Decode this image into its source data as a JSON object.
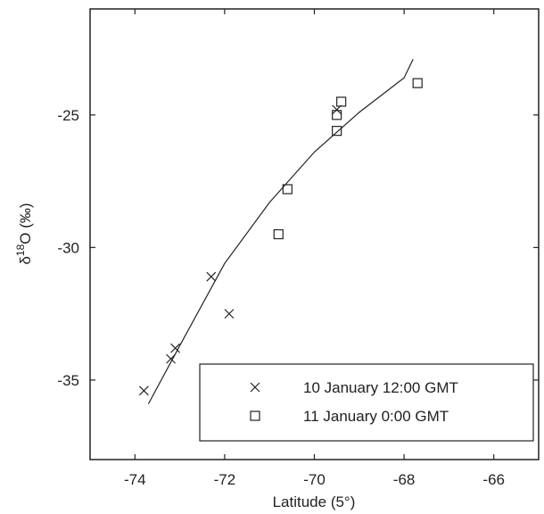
{
  "chart_data": {
    "type": "scatter",
    "xlabel": "Latitude (5°)",
    "ylabel": "δ18O (‰)",
    "ylabel_parts": {
      "delta": "δ",
      "sup": "18",
      "rest": "O (‰)"
    },
    "xlim": [
      -75,
      -65
    ],
    "ylim": [
      -38,
      -21
    ],
    "x_ticks": [
      -74,
      -72,
      -70,
      -68,
      -66
    ],
    "y_ticks": [
      -25,
      -30,
      -35
    ],
    "grid": false,
    "legend_position": "bottom-right",
    "series": [
      {
        "name": "10 January 12:00 GMT",
        "marker": "x",
        "points": [
          {
            "x": -73.8,
            "y": -35.4
          },
          {
            "x": -73.2,
            "y": -34.2
          },
          {
            "x": -73.1,
            "y": -33.8
          },
          {
            "x": -72.3,
            "y": -31.1
          },
          {
            "x": -71.9,
            "y": -32.5
          },
          {
            "x": -69.5,
            "y": -24.8
          }
        ]
      },
      {
        "name": "11 January 0:00 GMT",
        "marker": "square",
        "points": [
          {
            "x": -67.7,
            "y": -23.8
          },
          {
            "x": -69.4,
            "y": -24.5
          },
          {
            "x": -69.5,
            "y": -25.0
          },
          {
            "x": -69.5,
            "y": -25.6
          },
          {
            "x": -70.6,
            "y": -27.8
          },
          {
            "x": -70.8,
            "y": -29.5
          }
        ]
      }
    ],
    "fit_line": {
      "points": [
        {
          "x": -73.7,
          "y": -35.9
        },
        {
          "x": -73.0,
          "y": -33.7
        },
        {
          "x": -72.0,
          "y": -30.6
        },
        {
          "x": -71.0,
          "y": -28.3
        },
        {
          "x": -70.0,
          "y": -26.4
        },
        {
          "x": -69.0,
          "y": -24.9
        },
        {
          "x": -68.0,
          "y": -23.6
        },
        {
          "x": -67.8,
          "y": -22.9
        }
      ]
    }
  },
  "colors": {
    "ink": "#222222",
    "background": "#ffffff"
  }
}
